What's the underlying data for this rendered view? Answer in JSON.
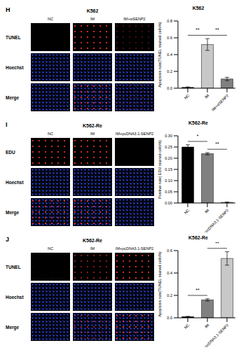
{
  "panels": [
    {
      "letter": "H",
      "cell_line": "K562",
      "columns": [
        "NC",
        "IM",
        "IM+siSENP2"
      ],
      "rows": [
        "TUNEL",
        "Hoechst",
        "Merge"
      ]
    },
    {
      "letter": "I",
      "cell_line": "K562-Re",
      "columns": [
        "NC",
        "IM",
        "IM+pcDNA3.1-SENP2"
      ],
      "rows": [
        "EDU",
        "Hoechst",
        "Merge"
      ]
    },
    {
      "letter": "J",
      "cell_line": "K562-Re",
      "columns": [
        "NC",
        "IM",
        "IM+pcDNA3.1-SENP2"
      ],
      "rows": [
        "TUNEL",
        "Hoechst",
        "Merge"
      ]
    }
  ],
  "chart_data": [
    {
      "type": "bar",
      "title": "K562",
      "y_label": "Apoptosis rate(TUNEL stained cells%)",
      "categories": [
        "NC",
        "IM",
        "IM+siSENP2"
      ],
      "values": [
        0.01,
        0.52,
        0.11
      ],
      "errors": [
        0.005,
        0.07,
        0.02
      ],
      "colors": [
        "#000000",
        "#c8c8c8",
        "#808080"
      ],
      "ylim": [
        0,
        0.8
      ],
      "yticks": [
        {
          "value": 0,
          "label": "0.0"
        },
        {
          "value": 0.2,
          "label": "0.2"
        },
        {
          "value": 0.4,
          "label": "0.4"
        },
        {
          "value": 0.6,
          "label": "0.6"
        },
        {
          "value": 0.8,
          "label": "0.8"
        }
      ],
      "significance": [
        {
          "from": 0,
          "to": 1,
          "label": "**"
        },
        {
          "from": 1,
          "to": 2,
          "label": "**"
        }
      ]
    },
    {
      "type": "bar",
      "title": "K562-Re",
      "y_label": "Positive rate( EDU stained cells%)",
      "categories": [
        "NC",
        "IM",
        "IM+pcDNA3.1-SENP2"
      ],
      "values": [
        0.25,
        0.22,
        0.003
      ],
      "errors": [
        0.01,
        0.005,
        0.001
      ],
      "colors": [
        "#000000",
        "#808080",
        "#c8c8c8"
      ],
      "ylim": [
        0,
        0.3
      ],
      "yticks": [
        {
          "value": 0,
          "label": "0.00"
        },
        {
          "value": 0.05,
          "label": "0.05"
        },
        {
          "value": 0.1,
          "label": "0.10"
        },
        {
          "value": 0.15,
          "label": "0.15"
        },
        {
          "value": 0.2,
          "label": "0.20"
        },
        {
          "value": 0.25,
          "label": "0.25"
        },
        {
          "value": 0.3,
          "label": "0.30"
        }
      ],
      "significance": [
        {
          "from": 0,
          "to": 1,
          "label": "*"
        },
        {
          "from": 1,
          "to": 2,
          "label": "**"
        }
      ]
    },
    {
      "type": "bar",
      "title": "K562-Re",
      "y_label": "Apoptosis rate(TUNEL stained cells%)",
      "categories": [
        "NC",
        "IM",
        "IM+pcDNA3.1-SENP2"
      ],
      "values": [
        0.01,
        0.16,
        0.53
      ],
      "errors": [
        0.003,
        0.01,
        0.06
      ],
      "colors": [
        "#000000",
        "#808080",
        "#c8c8c8"
      ],
      "ylim": [
        0,
        0.6
      ],
      "yticks": [
        {
          "value": 0,
          "label": "0.0"
        },
        {
          "value": 0.2,
          "label": "0.2"
        },
        {
          "value": 0.4,
          "label": "0.4"
        },
        {
          "value": 0.6,
          "label": "0.6"
        }
      ],
      "significance": [
        {
          "from": 0,
          "to": 1,
          "label": "**"
        },
        {
          "from": 1,
          "to": 2,
          "label": "**"
        }
      ]
    }
  ]
}
